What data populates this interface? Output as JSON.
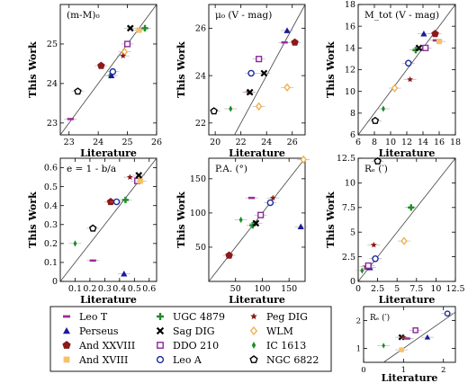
{
  "legend": {
    "entries": [
      {
        "name": "Leo T",
        "marker": "hbar",
        "color": "#9b2c9b"
      },
      {
        "name": "Perseus",
        "marker": "triangle",
        "color": "#1a1a9c"
      },
      {
        "name": "And XXVIII",
        "marker": "pentagon",
        "color": "#8b1a1a"
      },
      {
        "name": "And XVIII",
        "marker": "square",
        "color": "#f5c16a"
      },
      {
        "name": "UGC 4879",
        "marker": "plus",
        "color": "#1f8b2a"
      },
      {
        "name": "Sag DIG",
        "marker": "x",
        "color": "#000000"
      },
      {
        "name": "DDO 210",
        "marker": "open-square",
        "color": "#8a2a9a"
      },
      {
        "name": "Leo A",
        "marker": "open-circle",
        "color": "#1a2a9c"
      },
      {
        "name": "Peg DIG",
        "marker": "star",
        "color": "#8b1a1a"
      },
      {
        "name": "WLM",
        "marker": "open-diamond",
        "color": "#f0b050"
      },
      {
        "name": "IC 1613",
        "marker": "diamond",
        "color": "#1f8b2a"
      },
      {
        "name": "NGC 6822",
        "marker": "open-pentagon",
        "color": "#000000"
      }
    ]
  },
  "chart_data": [
    {
      "type": "scatter",
      "label": "(m-M)₀",
      "xlabel": "Literature",
      "ylabel": "This Work",
      "xlim": [
        22.7,
        26
      ],
      "ylim": [
        22.7,
        26
      ],
      "xticks": [
        23,
        24,
        25,
        26
      ],
      "yticks": [
        23,
        24,
        25
      ],
      "identity_line": true,
      "points": [
        {
          "series": "Leo T",
          "x": 23.05,
          "y": 23.1
        },
        {
          "series": "NGC 6822",
          "x": 23.3,
          "y": 23.8
        },
        {
          "series": "And XXVIII",
          "x": 24.1,
          "y": 24.45
        },
        {
          "series": "IC 1613",
          "x": 24.4,
          "y": 24.2
        },
        {
          "series": "Perseus",
          "x": 24.45,
          "y": 24.2
        },
        {
          "series": "Leo A",
          "x": 24.5,
          "y": 24.3
        },
        {
          "series": "WLM",
          "x": 24.9,
          "y": 24.8
        },
        {
          "series": "DDO 210",
          "x": 25.0,
          "y": 25.0
        },
        {
          "series": "Sag DIG",
          "x": 25.1,
          "y": 25.4
        },
        {
          "series": "And XVIII",
          "x": 25.4,
          "y": 25.35
        },
        {
          "series": "UGC 4879",
          "x": 25.6,
          "y": 25.4
        },
        {
          "series": "Peg DIG",
          "x": 24.85,
          "y": 24.7
        }
      ]
    },
    {
      "type": "scatter",
      "label": "μ₀ (V - mag)",
      "xlabel": "Literature",
      "ylabel": "This Work",
      "xlim": [
        19.5,
        27
      ],
      "ylim": [
        21.5,
        27
      ],
      "xticks": [
        20,
        22,
        24,
        26
      ],
      "yticks": [
        22,
        24,
        26
      ],
      "identity_line": true,
      "points": [
        {
          "series": "NGC 6822",
          "x": 19.9,
          "y": 22.5
        },
        {
          "series": "IC 1613",
          "x": 21.2,
          "y": 22.6
        },
        {
          "series": "Peg DIG",
          "x": 22.6,
          "y": 23.3
        },
        {
          "series": "Sag DIG",
          "x": 22.7,
          "y": 23.3
        },
        {
          "series": "WLM",
          "x": 23.4,
          "y": 22.7
        },
        {
          "series": "DDO 210",
          "x": 23.4,
          "y": 24.7
        },
        {
          "series": "Sag DIG",
          "x": 23.8,
          "y": 24.1
        },
        {
          "series": "Leo A",
          "x": 22.8,
          "y": 24.1
        },
        {
          "series": "WLM",
          "x": 25.6,
          "y": 23.5
        },
        {
          "series": "Perseus",
          "x": 25.6,
          "y": 25.9
        },
        {
          "series": "Leo T",
          "x": 25.4,
          "y": 25.4
        },
        {
          "series": "And XXVIII",
          "x": 26.2,
          "y": 25.4
        }
      ]
    },
    {
      "type": "scatter",
      "label": "M_tot (V - mag)",
      "xlabel": "Literature",
      "ylabel": "This Work",
      "xlim": [
        6,
        18
      ],
      "ylim": [
        6,
        18
      ],
      "xticks": [
        6,
        8,
        10,
        12,
        14,
        16,
        18
      ],
      "yticks": [
        6,
        8,
        10,
        12,
        14,
        16,
        18
      ],
      "identity_line": true,
      "points": [
        {
          "series": "NGC 6822",
          "x": 8.1,
          "y": 7.3
        },
        {
          "series": "IC 1613",
          "x": 9.1,
          "y": 8.4
        },
        {
          "series": "WLM",
          "x": 10.5,
          "y": 10.3
        },
        {
          "series": "Peg DIG",
          "x": 12.4,
          "y": 11.1
        },
        {
          "series": "Leo A",
          "x": 12.2,
          "y": 12.6
        },
        {
          "series": "UGC 4879",
          "x": 13.1,
          "y": 13.8
        },
        {
          "series": "Sag DIG",
          "x": 13.5,
          "y": 14.0
        },
        {
          "series": "DDO 210",
          "x": 14.3,
          "y": 14.0
        },
        {
          "series": "Perseus",
          "x": 14.1,
          "y": 15.3
        },
        {
          "series": "And XXVIII",
          "x": 15.5,
          "y": 15.3
        },
        {
          "series": "Leo T",
          "x": 15.6,
          "y": 14.7
        },
        {
          "series": "And XVIII",
          "x": 16.0,
          "y": 14.6
        }
      ]
    },
    {
      "type": "scatter",
      "label": "e = 1 - b/a",
      "xlabel": "Literature",
      "ylabel": "This Work",
      "xlim": [
        0,
        0.65
      ],
      "ylim": [
        0,
        0.65
      ],
      "xticks": [
        0.1,
        0.2,
        0.3,
        0.4,
        0.5,
        0.6
      ],
      "yticks": [
        0,
        0.1,
        0.2,
        0.3,
        0.4,
        0.5,
        0.6
      ],
      "identity_line": true,
      "points": [
        {
          "series": "IC 1613",
          "x": 0.1,
          "y": 0.2
        },
        {
          "series": "Leo T",
          "x": 0.22,
          "y": 0.11
        },
        {
          "series": "NGC 6822",
          "x": 0.22,
          "y": 0.28
        },
        {
          "series": "And XXVIII",
          "x": 0.34,
          "y": 0.42
        },
        {
          "series": "Leo A",
          "x": 0.38,
          "y": 0.42
        },
        {
          "series": "UGC 4879",
          "x": 0.44,
          "y": 0.43
        },
        {
          "series": "Perseus",
          "x": 0.43,
          "y": 0.04
        },
        {
          "series": "Peg DIG",
          "x": 0.47,
          "y": 0.55
        },
        {
          "series": "DDO 210",
          "x": 0.52,
          "y": 0.53
        },
        {
          "series": "And XVIII",
          "x": 0.54,
          "y": 0.53
        },
        {
          "series": "Sag DIG",
          "x": 0.53,
          "y": 0.56
        }
      ]
    },
    {
      "type": "scatter",
      "label": "P.A. (°)",
      "xlabel": "Literature",
      "ylabel": "This Work",
      "xlim": [
        0,
        180
      ],
      "ylim": [
        0,
        180
      ],
      "xticks": [
        50,
        100,
        150
      ],
      "yticks": [
        50,
        100,
        150
      ],
      "identity_line": true,
      "points": [
        {
          "series": "And XXVIII",
          "x": 38,
          "y": 38
        },
        {
          "series": "Leo T",
          "x": 80,
          "y": 122
        },
        {
          "series": "IC 1613",
          "x": 60,
          "y": 90
        },
        {
          "series": "UGC 4879",
          "x": 82,
          "y": 82
        },
        {
          "series": "Sag DIG",
          "x": 88,
          "y": 85
        },
        {
          "series": "DDO 210",
          "x": 97,
          "y": 97
        },
        {
          "series": "Leo A",
          "x": 115,
          "y": 115
        },
        {
          "series": "Peg DIG",
          "x": 120,
          "y": 122
        },
        {
          "series": "Perseus",
          "x": 172,
          "y": 80
        },
        {
          "series": "WLM",
          "x": 177,
          "y": 178
        }
      ]
    },
    {
      "type": "scatter",
      "label": "Rₑ (′)",
      "xlabel": "Literature",
      "ylabel": "This Work",
      "xlim": [
        0,
        12.5
      ],
      "ylim": [
        0,
        12.5
      ],
      "xticks": [
        0,
        2.5,
        5,
        7.5,
        10,
        12.5
      ],
      "yticks": [
        0,
        2.5,
        5,
        7.5,
        10,
        12.5
      ],
      "identity_line": true,
      "points": [
        {
          "series": "IC 1613",
          "x": 0.5,
          "y": 1.1
        },
        {
          "series": "Peg DIG",
          "x": 1.0,
          "y": 1.5
        },
        {
          "series": "Leo T",
          "x": 1.2,
          "y": 1.3
        },
        {
          "series": "Perseus",
          "x": 1.5,
          "y": 1.4
        },
        {
          "series": "DDO 210",
          "x": 1.3,
          "y": 1.6
        },
        {
          "series": "Leo A",
          "x": 2.2,
          "y": 2.3
        },
        {
          "series": "Peg DIG",
          "x": 2.0,
          "y": 3.7
        },
        {
          "series": "WLM",
          "x": 5.9,
          "y": 4.1
        },
        {
          "series": "UGC 4879",
          "x": 6.8,
          "y": 7.5
        },
        {
          "series": "NGC 6822",
          "x": 2.5,
          "y": 12.2
        }
      ]
    },
    {
      "type": "scatter",
      "label": "Rₑ (′)",
      "xlabel": "Literature",
      "ylabel": "",
      "xlim": [
        0,
        2.3
      ],
      "ylim": [
        0.5,
        2.5
      ],
      "xticks": [
        0,
        1,
        2
      ],
      "yticks": [
        1,
        2
      ],
      "identity_line": true,
      "points": [
        {
          "series": "IC 1613",
          "x": 0.5,
          "y": 1.1
        },
        {
          "series": "And XVIII",
          "x": 0.95,
          "y": 0.95
        },
        {
          "series": "Sag DIG",
          "x": 0.95,
          "y": 1.4
        },
        {
          "series": "Peg DIG",
          "x": 1.0,
          "y": 1.4
        },
        {
          "series": "Leo T",
          "x": 1.1,
          "y": 1.35
        },
        {
          "series": "Perseus",
          "x": 1.6,
          "y": 1.4
        },
        {
          "series": "DDO 210",
          "x": 1.3,
          "y": 1.65
        },
        {
          "series": "Leo A",
          "x": 2.1,
          "y": 2.25
        }
      ]
    }
  ]
}
